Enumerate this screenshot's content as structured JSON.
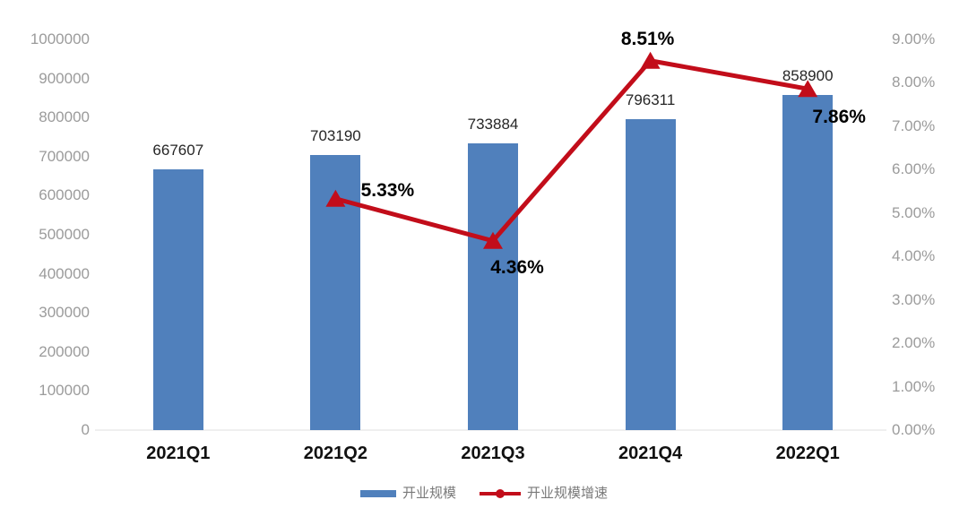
{
  "chart_data": {
    "type": "bar+line combo",
    "title": "",
    "categories": [
      "2021Q1",
      "2021Q2",
      "2021Q3",
      "2021Q4",
      "2022Q1"
    ],
    "series": [
      {
        "name": "开业规模",
        "type": "bar",
        "axis": "left",
        "color": "#5080bc",
        "values": [
          667607,
          703190,
          733884,
          796311,
          858900
        ],
        "data_labels": [
          "667607",
          "703190",
          "733884",
          "796311",
          "858900"
        ]
      },
      {
        "name": "开业规模增速",
        "type": "line",
        "axis": "right",
        "color": "#c20d1a",
        "marker": "triangle-up",
        "values": [
          null,
          5.33,
          4.36,
          8.51,
          7.86
        ],
        "data_labels": [
          null,
          "5.33%",
          "4.36%",
          "8.51%",
          "7.86%"
        ]
      }
    ],
    "left_axis": {
      "min": 0,
      "max": 1000000,
      "step": 100000,
      "tick_labels": [
        "1000000",
        "900000",
        "800000",
        "700000",
        "600000",
        "500000",
        "400000",
        "300000",
        "200000",
        "100000",
        "0"
      ]
    },
    "right_axis": {
      "min": 0,
      "max": 9,
      "step": 1,
      "tick_labels": [
        "9.00%",
        "8.00%",
        "7.00%",
        "6.00%",
        "5.00%",
        "4.00%",
        "3.00%",
        "2.00%",
        "1.00%",
        "0.00%"
      ]
    },
    "grid": "off",
    "legend_position": "bottom-center",
    "legend": [
      {
        "label": "开业规模",
        "swatch": "bar"
      },
      {
        "label": "开业规模增速",
        "swatch": "line-dot"
      }
    ]
  },
  "colors": {
    "bar": "#5080bc",
    "line": "#c20d1a",
    "axis_text": "#9b9b9b",
    "x_axis_text": "#111111",
    "bar_label_text": "#262626",
    "rate_label_text": "#000000",
    "legend_text": "#7a7a7a",
    "baseline": "#efefef",
    "background": "#ffffff"
  }
}
